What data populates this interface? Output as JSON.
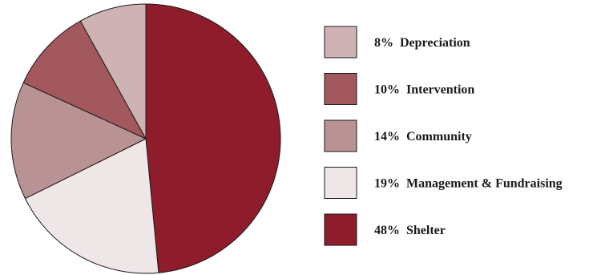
{
  "chart_data": {
    "type": "pie",
    "title": "",
    "start_angle_deg": 0,
    "direction": "clockwise",
    "slices": [
      {
        "label": "Shelter",
        "percent_label": "48%",
        "value": 48,
        "color": "#8e1c2b"
      },
      {
        "label": "Management & Fundraising",
        "percent_label": "19%",
        "value": 19,
        "color": "#efe6e8"
      },
      {
        "label": "Community",
        "percent_label": "14%",
        "value": 14,
        "color": "#b99294"
      },
      {
        "label": "Intervention",
        "percent_label": "10%",
        "value": 10,
        "color": "#a3585e"
      },
      {
        "label": "Depreciation",
        "percent_label": "8%",
        "value": 8,
        "color": "#cfb3b4"
      }
    ],
    "legend": {
      "placement": "right",
      "order": [
        "Depreciation",
        "Intervention",
        "Community",
        "Management & Fundraising",
        "Shelter"
      ]
    }
  }
}
